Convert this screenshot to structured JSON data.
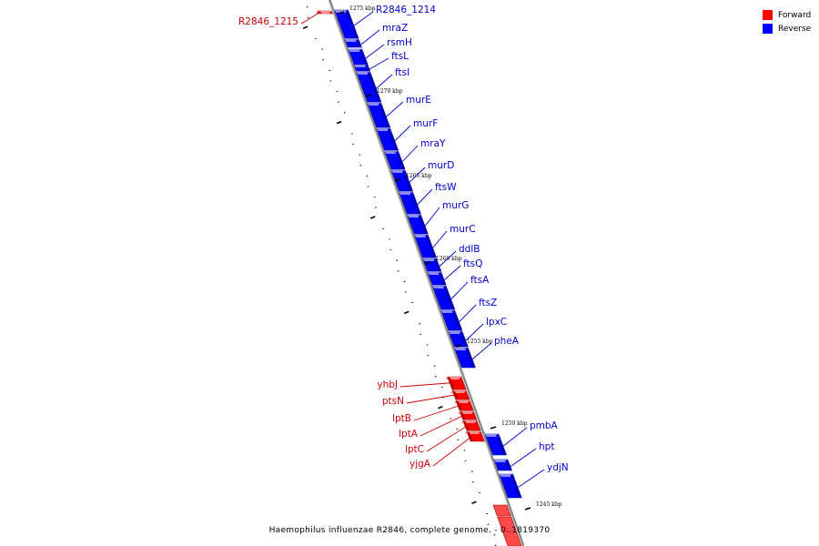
{
  "legend": [
    {
      "label": "Forward",
      "color": "#ff0000"
    },
    {
      "label": "Reverse",
      "color": "#0000ff"
    }
  ],
  "footer": "Haemophilus influenzae R2846, complete genome. - 0..1819370",
  "colors": {
    "forward": "#ff0000",
    "reverse": "#0000ff",
    "forward_label": "#cc0000",
    "reverse_label": "#0000cc",
    "backbone": "#888888"
  },
  "kbp_markers": [
    "1275 kbp",
    "1270 kbp",
    "1265 kbp",
    "1260 kbp",
    "1255 kbp",
    "1250 kbp",
    "1245 kbp"
  ],
  "genes": [
    {
      "name": "R2846_1215",
      "strand": "forward"
    },
    {
      "name": "R2846_1214",
      "strand": "reverse"
    },
    {
      "name": "mraZ",
      "strand": "reverse"
    },
    {
      "name": "rsmH",
      "strand": "reverse"
    },
    {
      "name": "ftsL",
      "strand": "reverse"
    },
    {
      "name": "ftsI",
      "strand": "reverse"
    },
    {
      "name": "murE",
      "strand": "reverse"
    },
    {
      "name": "murF",
      "strand": "reverse"
    },
    {
      "name": "mraY",
      "strand": "reverse"
    },
    {
      "name": "murD",
      "strand": "reverse"
    },
    {
      "name": "ftsW",
      "strand": "reverse"
    },
    {
      "name": "murG",
      "strand": "reverse"
    },
    {
      "name": "murC",
      "strand": "reverse"
    },
    {
      "name": "ddlB",
      "strand": "reverse"
    },
    {
      "name": "ftsQ",
      "strand": "reverse"
    },
    {
      "name": "ftsA",
      "strand": "reverse"
    },
    {
      "name": "ftsZ",
      "strand": "reverse"
    },
    {
      "name": "lpxC",
      "strand": "reverse"
    },
    {
      "name": "pheA",
      "strand": "reverse"
    },
    {
      "name": "yhbJ",
      "strand": "forward"
    },
    {
      "name": "ptsN",
      "strand": "forward"
    },
    {
      "name": "lptB",
      "strand": "forward"
    },
    {
      "name": "lptA",
      "strand": "forward"
    },
    {
      "name": "lptC",
      "strand": "forward"
    },
    {
      "name": "yjgA",
      "strand": "forward"
    },
    {
      "name": "pmbA",
      "strand": "reverse"
    },
    {
      "name": "hpt",
      "strand": "reverse"
    },
    {
      "name": "ydjN",
      "strand": "reverse"
    }
  ]
}
